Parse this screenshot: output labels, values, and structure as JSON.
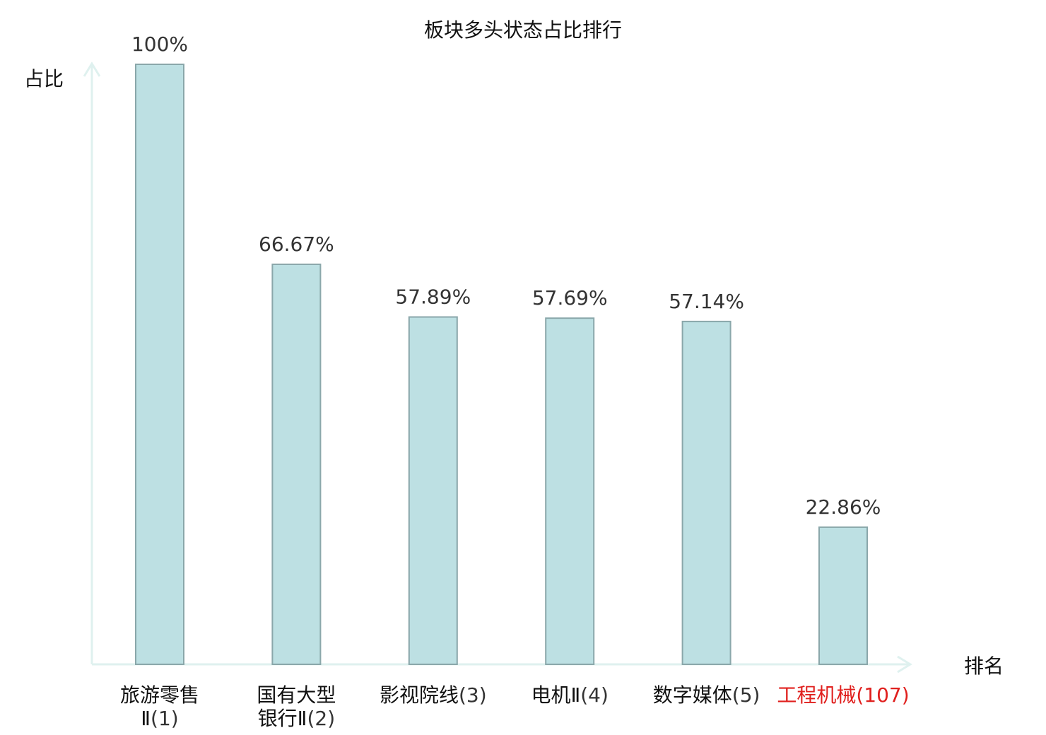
{
  "chart_data": {
    "type": "bar",
    "title": "板块多头状态占比排行",
    "ylabel": "占比",
    "xlabel": "排名",
    "ylim": [
      0,
      100
    ],
    "grid": false,
    "categories": [
      {
        "name_lines": [
          "旅游零售",
          "Ⅱ"
        ],
        "rank": "(1)",
        "highlight": false
      },
      {
        "name_lines": [
          "国有大型",
          "银行Ⅱ"
        ],
        "rank": "(2)",
        "highlight": false
      },
      {
        "name_lines": [
          "影视院线"
        ],
        "rank": "(3)",
        "highlight": false
      },
      {
        "name_lines": [
          "电机Ⅱ"
        ],
        "rank": "(4)",
        "highlight": false
      },
      {
        "name_lines": [
          "数字媒体"
        ],
        "rank": "(5)",
        "highlight": false
      },
      {
        "name_lines": [
          "工程机械"
        ],
        "rank": "(107)",
        "highlight": true
      }
    ],
    "values": [
      100,
      66.67,
      57.89,
      57.69,
      57.14,
      22.86
    ],
    "value_labels": [
      "100%",
      "66.67%",
      "57.89%",
      "57.69%",
      "57.14%",
      "22.86%"
    ],
    "colors": {
      "bar_fill": "#bde0e3",
      "bar_stroke": "#8aa7aa",
      "axis": "#dff1ef",
      "highlight": "#e0201e"
    }
  }
}
